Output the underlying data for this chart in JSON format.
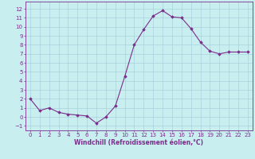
{
  "x": [
    0,
    1,
    2,
    3,
    4,
    5,
    6,
    7,
    8,
    9,
    10,
    11,
    12,
    13,
    14,
    15,
    16,
    17,
    18,
    19,
    20,
    21,
    22,
    23
  ],
  "y": [
    2,
    0.7,
    1,
    0.5,
    0.3,
    0.2,
    0.1,
    -0.7,
    0.0,
    1.2,
    4.5,
    8.0,
    9.7,
    11.2,
    11.8,
    11.1,
    11.0,
    9.8,
    8.3,
    7.3,
    7.0,
    7.2,
    7.2,
    7.2
  ],
  "line_color": "#7b2d8b",
  "marker": "D",
  "marker_size": 1.8,
  "background_color": "#c8eef0",
  "grid_color": "#a0ccd4",
  "xlabel": "Windchill (Refroidissement éolien,°C)",
  "ylim": [
    -1.5,
    12.8
  ],
  "xlim": [
    -0.5,
    23.5
  ],
  "yticks": [
    -1,
    0,
    1,
    2,
    3,
    4,
    5,
    6,
    7,
    8,
    9,
    10,
    11,
    12
  ],
  "xticks": [
    0,
    1,
    2,
    3,
    4,
    5,
    6,
    7,
    8,
    9,
    10,
    11,
    12,
    13,
    14,
    15,
    16,
    17,
    18,
    19,
    20,
    21,
    22,
    23
  ],
  "axis_color": "#7b2d8b",
  "tick_color": "#7b2d8b",
  "label_color": "#7b2d8b",
  "tick_fontsize": 5.0,
  "label_fontsize": 5.5
}
